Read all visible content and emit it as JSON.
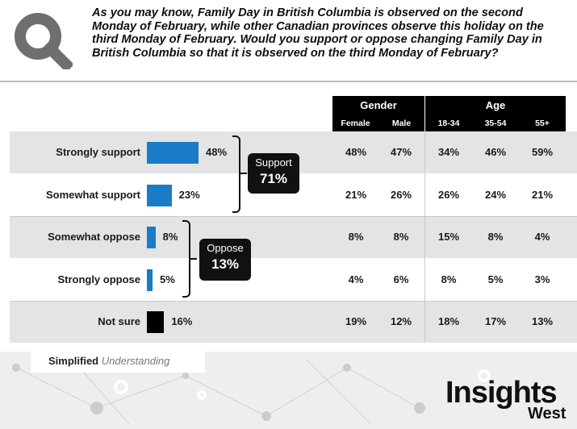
{
  "question": "As you may know, Family Day in British Columbia is observed on the second Monday of February, while other Canadian provinces observe this holiday on the third Monday of February. Would you support or oppose changing Family Day in British Columbia so that it is observed on the third Monday of February?",
  "header": {
    "gender_label": "Gender",
    "age_label": "Age",
    "columns": [
      "Female",
      "Male",
      "18-34",
      "35-54",
      "55+"
    ]
  },
  "chart_data": {
    "type": "bar",
    "categories": [
      "Strongly support",
      "Somewhat support",
      "Somewhat oppose",
      "Strongly oppose",
      "Not sure"
    ],
    "values": [
      48,
      23,
      8,
      5,
      16
    ],
    "value_labels": [
      "48%",
      "23%",
      "8%",
      "5%",
      "16%"
    ],
    "bar_colors": [
      "#1a7bc6",
      "#1a7bc6",
      "#1a7bc6",
      "#1a7bc6",
      "#000000"
    ],
    "table": [
      [
        "48%",
        "47%",
        "34%",
        "46%",
        "59%"
      ],
      [
        "21%",
        "26%",
        "26%",
        "24%",
        "21%"
      ],
      [
        "8%",
        "8%",
        "15%",
        "8%",
        "4%"
      ],
      [
        "4%",
        "6%",
        "8%",
        "5%",
        "3%"
      ],
      [
        "19%",
        "12%",
        "18%",
        "17%",
        "13%"
      ]
    ],
    "groups": [
      {
        "name": "Support",
        "value": "71%"
      },
      {
        "name": "Oppose",
        "value": "13%"
      }
    ]
  },
  "footer": {
    "tagline_bold": "Simplified",
    "tagline_italic": "Understanding",
    "brand": "Insights",
    "brand_sub": "West"
  },
  "colors": {
    "accent_blue": "#1a7bc6",
    "header_black": "#000000",
    "row_shade": "#e4e4e4"
  }
}
